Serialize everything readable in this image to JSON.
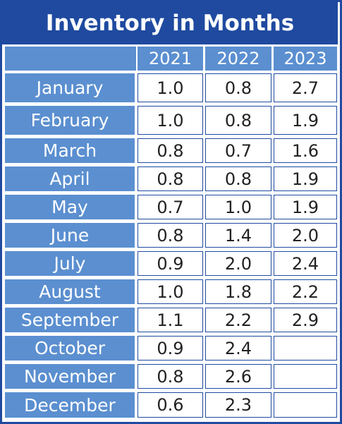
{
  "title": "Inventory in Months",
  "columns": [
    "2021",
    "2022",
    "2023"
  ],
  "rows": [
    {
      "month": "January",
      "values": [
        "1.0",
        "0.8",
        "2.7"
      ]
    },
    {
      "month": "February",
      "values": [
        "1.0",
        "0.8",
        "1.9"
      ]
    },
    {
      "month": "March",
      "values": [
        "0.8",
        "0.7",
        "1.6"
      ]
    },
    {
      "month": "April",
      "values": [
        "0.8",
        "0.8",
        "1.9"
      ]
    },
    {
      "month": "May",
      "values": [
        "0.7",
        "1.0",
        "1.9"
      ]
    },
    {
      "month": "June",
      "values": [
        "0.8",
        "1.4",
        "2.0"
      ]
    },
    {
      "month": "July",
      "values": [
        "0.9",
        "2.0",
        "2.4"
      ]
    },
    {
      "month": "August",
      "values": [
        "1.0",
        "1.8",
        "2.2"
      ]
    },
    {
      "month": "September",
      "values": [
        "1.1",
        "2.2",
        "2.9"
      ]
    },
    {
      "month": "October",
      "values": [
        "0.9",
        "2.4",
        ""
      ]
    },
    {
      "month": "November",
      "values": [
        "0.8",
        "2.6",
        ""
      ]
    },
    {
      "month": "December",
      "values": [
        "0.6",
        "2.3",
        ""
      ]
    }
  ],
  "colors": {
    "header_dark": "#1f4aa0",
    "header_light": "#5b8fd0",
    "cell_bg": "#ffffff",
    "text_dark": "#222222"
  },
  "chart_data": {
    "type": "table",
    "title": "Inventory in Months",
    "columns": [
      "2021",
      "2022",
      "2023"
    ],
    "categories": [
      "January",
      "February",
      "March",
      "April",
      "May",
      "June",
      "July",
      "August",
      "September",
      "October",
      "November",
      "December"
    ],
    "series": [
      {
        "name": "2021",
        "values": [
          1.0,
          1.0,
          0.8,
          0.8,
          0.7,
          0.8,
          0.9,
          1.0,
          1.1,
          0.9,
          0.8,
          0.6
        ]
      },
      {
        "name": "2022",
        "values": [
          0.8,
          0.8,
          0.7,
          0.8,
          1.0,
          1.4,
          2.0,
          1.8,
          2.2,
          2.4,
          2.6,
          2.3
        ]
      },
      {
        "name": "2023",
        "values": [
          2.7,
          1.9,
          1.6,
          1.9,
          1.9,
          2.0,
          2.4,
          2.2,
          2.9,
          null,
          null,
          null
        ]
      }
    ]
  }
}
